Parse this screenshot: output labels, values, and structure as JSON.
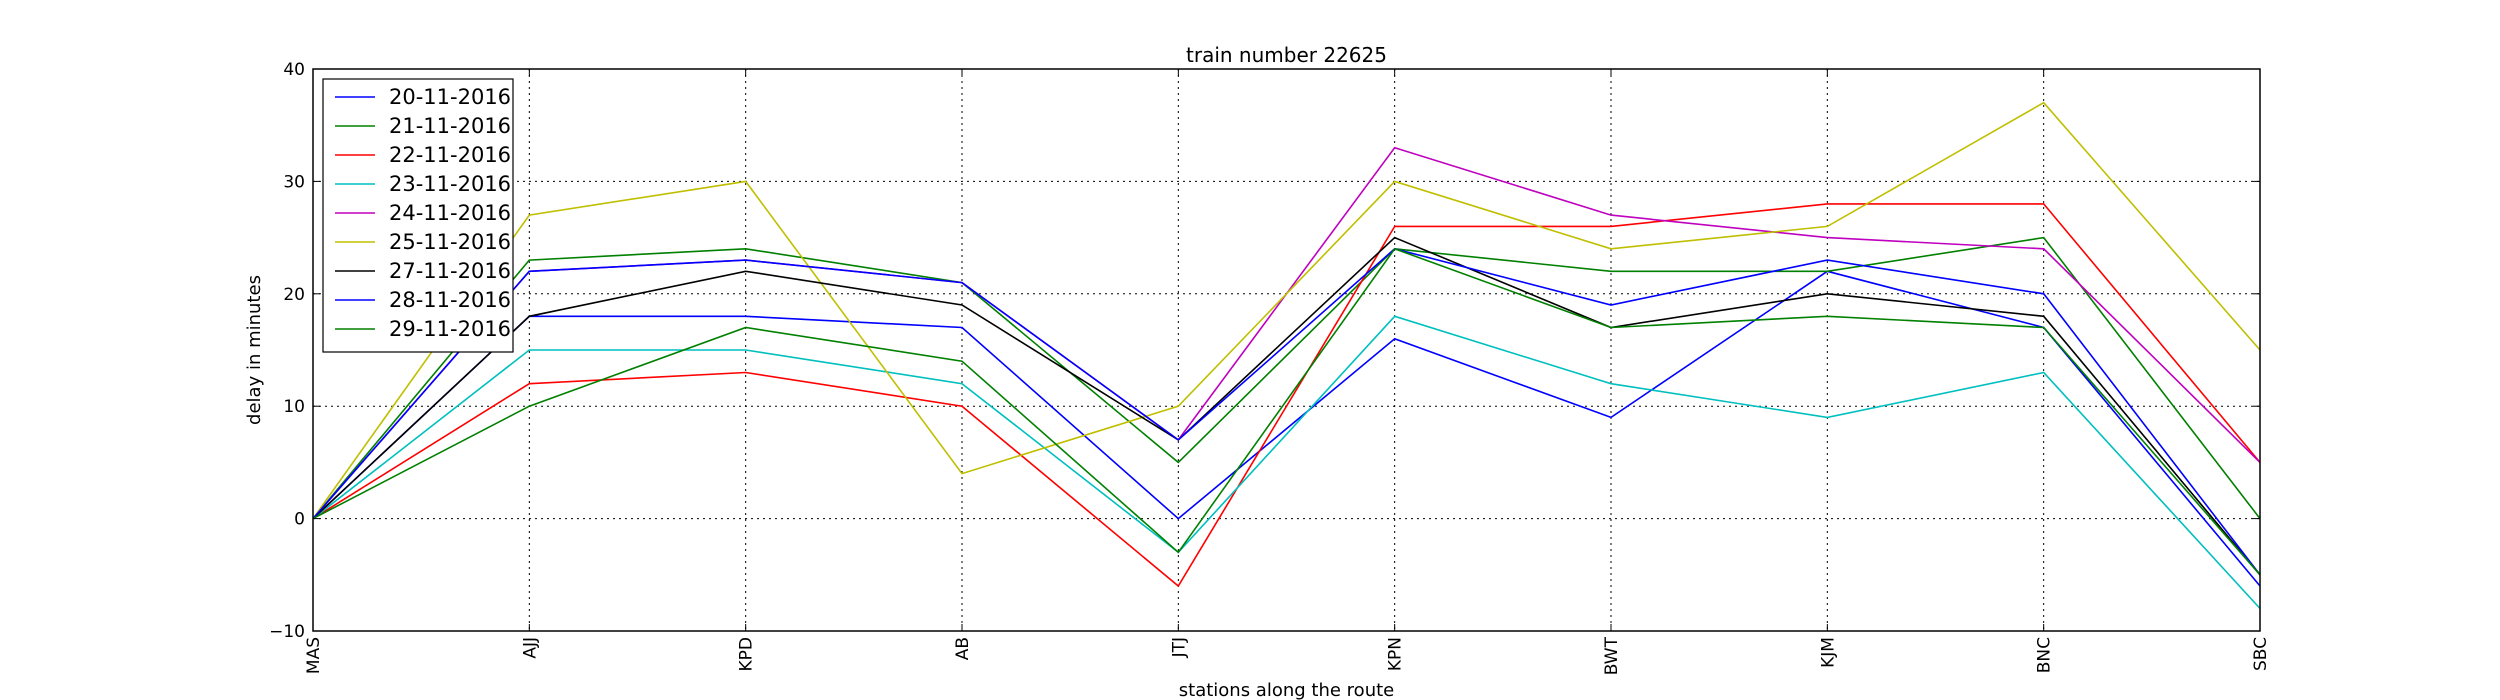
{
  "chart_data": {
    "type": "line",
    "title": "train number 22625",
    "xlabel": "stations along the route",
    "ylabel": "delay in minutes",
    "categories": [
      "MAS",
      "AJJ",
      "KPD",
      "AB",
      "JTJ",
      "KPN",
      "BWT",
      "KJM",
      "BNC",
      "SBC"
    ],
    "ylim": [
      -10,
      40
    ],
    "yticks": [
      -10,
      0,
      10,
      20,
      30,
      40
    ],
    "grid": true,
    "legend_position": "top-left",
    "series": [
      {
        "name": "20-11-2016",
        "color": "#0000ff",
        "values": [
          0,
          18,
          18,
          17,
          0,
          16,
          9,
          22,
          17,
          -6
        ]
      },
      {
        "name": "21-11-2016",
        "color": "#008000",
        "values": [
          0,
          23,
          24,
          21,
          5,
          24,
          22,
          22,
          25,
          0
        ]
      },
      {
        "name": "22-11-2016",
        "color": "#ff0000",
        "values": [
          0,
          12,
          13,
          10,
          -6,
          26,
          26,
          28,
          28,
          5
        ]
      },
      {
        "name": "23-11-2016",
        "color": "#00bfbf",
        "values": [
          0,
          15,
          15,
          12,
          -3,
          18,
          12,
          9,
          13,
          -8
        ]
      },
      {
        "name": "24-11-2016",
        "color": "#bf00bf",
        "values": [
          0,
          22,
          23,
          21,
          7,
          33,
          27,
          25,
          24,
          5
        ]
      },
      {
        "name": "25-11-2016",
        "color": "#bfbf00",
        "values": [
          0,
          27,
          30,
          4,
          10,
          30,
          24,
          26,
          37,
          15
        ]
      },
      {
        "name": "27-11-2016",
        "color": "#000000",
        "values": [
          0,
          18,
          22,
          19,
          7,
          25,
          17,
          20,
          18,
          -5
        ]
      },
      {
        "name": "28-11-2016",
        "color": "#0000ff",
        "values": [
          0,
          22,
          23,
          21,
          7,
          24,
          19,
          23,
          20,
          -5
        ]
      },
      {
        "name": "29-11-2016",
        "color": "#008000",
        "values": [
          0,
          10,
          17,
          14,
          -3,
          24,
          17,
          18,
          17,
          -5
        ]
      }
    ]
  }
}
